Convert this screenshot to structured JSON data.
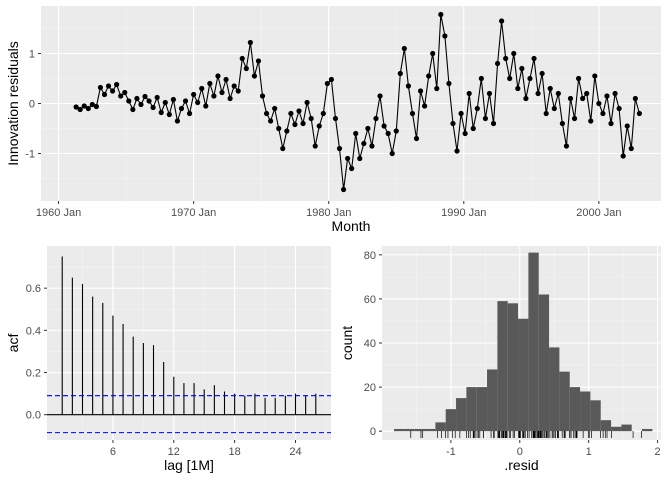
{
  "chart_data": [
    {
      "type": "line",
      "xlabel": "Month",
      "ylabel": "Innovation residuals",
      "x_ticks": [
        "1960 Jan",
        "1970 Jan",
        "1980 Jan",
        "1990 Jan",
        "2000 Jan"
      ],
      "y_ticks": [
        "-1",
        "0",
        "1"
      ],
      "xlim": [
        1958.7,
        2004.6
      ],
      "ylim": [
        -1.95,
        1.95
      ],
      "points_marked": true,
      "series": [
        {
          "values": [
            [
              1961.3,
              -0.07
            ],
            [
              1961.6,
              -0.12
            ],
            [
              1961.9,
              -0.05
            ],
            [
              1962.2,
              -0.1
            ],
            [
              1962.5,
              -0.02
            ],
            [
              1962.8,
              -0.06
            ],
            [
              1963.1,
              0.32
            ],
            [
              1963.4,
              0.18
            ],
            [
              1963.7,
              0.35
            ],
            [
              1964.0,
              0.25
            ],
            [
              1964.3,
              0.38
            ],
            [
              1964.6,
              0.15
            ],
            [
              1964.9,
              0.22
            ],
            [
              1965.2,
              0.05
            ],
            [
              1965.5,
              -0.12
            ],
            [
              1965.8,
              0.1
            ],
            [
              1966.1,
              -0.02
            ],
            [
              1966.4,
              0.14
            ],
            [
              1966.7,
              0.05
            ],
            [
              1967.0,
              -0.08
            ],
            [
              1967.3,
              0.12
            ],
            [
              1967.6,
              -0.18
            ],
            [
              1967.9,
              0.02
            ],
            [
              1968.2,
              -0.22
            ],
            [
              1968.5,
              0.08
            ],
            [
              1968.8,
              -0.35
            ],
            [
              1969.1,
              -0.1
            ],
            [
              1969.4,
              0.05
            ],
            [
              1969.7,
              -0.2
            ],
            [
              1970.0,
              0.18
            ],
            [
              1970.3,
              0.02
            ],
            [
              1970.6,
              0.3
            ],
            [
              1970.9,
              -0.05
            ],
            [
              1971.2,
              0.4
            ],
            [
              1971.5,
              0.15
            ],
            [
              1971.8,
              0.55
            ],
            [
              1972.1,
              0.22
            ],
            [
              1972.4,
              0.48
            ],
            [
              1972.7,
              0.1
            ],
            [
              1973.0,
              0.35
            ],
            [
              1973.3,
              0.25
            ],
            [
              1973.6,
              0.9
            ],
            [
              1973.9,
              0.7
            ],
            [
              1974.2,
              1.22
            ],
            [
              1974.5,
              0.55
            ],
            [
              1974.8,
              0.85
            ],
            [
              1975.1,
              0.15
            ],
            [
              1975.4,
              -0.2
            ],
            [
              1975.7,
              -0.35
            ],
            [
              1976.0,
              -0.1
            ],
            [
              1976.3,
              -0.5
            ],
            [
              1976.6,
              -0.9
            ],
            [
              1976.9,
              -0.55
            ],
            [
              1977.2,
              -0.2
            ],
            [
              1977.5,
              -0.42
            ],
            [
              1977.8,
              -0.15
            ],
            [
              1978.1,
              -0.4
            ],
            [
              1978.4,
              0.02
            ],
            [
              1978.7,
              -0.3
            ],
            [
              1979.0,
              -0.85
            ],
            [
              1979.3,
              -0.45
            ],
            [
              1979.6,
              -0.2
            ],
            [
              1979.9,
              0.4
            ],
            [
              1980.2,
              0.48
            ],
            [
              1980.5,
              -0.3
            ],
            [
              1980.8,
              -0.9
            ],
            [
              1981.1,
              -1.72
            ],
            [
              1981.4,
              -1.1
            ],
            [
              1981.7,
              -1.3
            ],
            [
              1982.0,
              -0.6
            ],
            [
              1982.3,
              -1.1
            ],
            [
              1982.6,
              -0.8
            ],
            [
              1982.9,
              -0.5
            ],
            [
              1983.2,
              -0.85
            ],
            [
              1983.5,
              -0.3
            ],
            [
              1983.8,
              0.15
            ],
            [
              1984.1,
              -0.45
            ],
            [
              1984.4,
              -0.6
            ],
            [
              1984.7,
              -1.0
            ],
            [
              1985.0,
              -0.55
            ],
            [
              1985.3,
              0.6
            ],
            [
              1985.6,
              1.1
            ],
            [
              1985.9,
              0.35
            ],
            [
              1986.2,
              -0.2
            ],
            [
              1986.5,
              -0.7
            ],
            [
              1986.8,
              0.25
            ],
            [
              1987.1,
              -0.05
            ],
            [
              1987.4,
              0.55
            ],
            [
              1987.7,
              1.0
            ],
            [
              1988.0,
              0.3
            ],
            [
              1988.3,
              1.78
            ],
            [
              1988.6,
              1.35
            ],
            [
              1988.9,
              0.4
            ],
            [
              1989.2,
              -0.4
            ],
            [
              1989.5,
              -0.95
            ],
            [
              1989.8,
              -0.2
            ],
            [
              1990.1,
              -0.6
            ],
            [
              1990.4,
              0.2
            ],
            [
              1990.7,
              -0.5
            ],
            [
              1991.0,
              -0.1
            ],
            [
              1991.3,
              0.5
            ],
            [
              1991.6,
              -0.3
            ],
            [
              1991.9,
              0.2
            ],
            [
              1992.2,
              -0.4
            ],
            [
              1992.5,
              0.8
            ],
            [
              1992.8,
              1.65
            ],
            [
              1993.1,
              0.9
            ],
            [
              1993.4,
              0.5
            ],
            [
              1993.7,
              1.0
            ],
            [
              1994.0,
              0.3
            ],
            [
              1994.3,
              0.7
            ],
            [
              1994.6,
              0.1
            ],
            [
              1994.9,
              0.5
            ],
            [
              1995.2,
              0.9
            ],
            [
              1995.5,
              0.2
            ],
            [
              1995.8,
              0.6
            ],
            [
              1996.1,
              -0.2
            ],
            [
              1996.4,
              0.3
            ],
            [
              1996.7,
              -0.1
            ],
            [
              1997.0,
              0.2
            ],
            [
              1997.3,
              -0.4
            ],
            [
              1997.6,
              -0.85
            ],
            [
              1997.9,
              0.1
            ],
            [
              1998.2,
              -0.3
            ],
            [
              1998.5,
              0.5
            ],
            [
              1998.8,
              0.1
            ],
            [
              1999.1,
              0.2
            ],
            [
              1999.4,
              -0.35
            ],
            [
              1999.7,
              0.55
            ],
            [
              2000.0,
              0.0
            ],
            [
              2000.3,
              -0.2
            ],
            [
              2000.6,
              0.15
            ],
            [
              2000.9,
              -0.4
            ],
            [
              2001.2,
              0.2
            ],
            [
              2001.5,
              -0.1
            ],
            [
              2001.8,
              -1.05
            ],
            [
              2002.1,
              -0.45
            ],
            [
              2002.4,
              -0.9
            ],
            [
              2002.7,
              0.1
            ],
            [
              2003.0,
              -0.2
            ]
          ]
        }
      ]
    },
    {
      "type": "bar",
      "xlabel": "lag [1M]",
      "ylabel": "acf",
      "x_ticks": [
        "6",
        "12",
        "18",
        "24"
      ],
      "y_ticks": [
        "0.0",
        "0.2",
        "0.4",
        "0.6"
      ],
      "lags": [
        1,
        2,
        3,
        4,
        5,
        6,
        7,
        8,
        9,
        10,
        11,
        12,
        13,
        14,
        15,
        16,
        17,
        18,
        19,
        20,
        21,
        22,
        23,
        24,
        25,
        26
      ],
      "values": [
        0.75,
        0.65,
        0.62,
        0.56,
        0.53,
        0.47,
        0.43,
        0.37,
        0.34,
        0.33,
        0.25,
        0.18,
        0.15,
        0.15,
        0.12,
        0.14,
        0.11,
        0.1,
        0.09,
        0.1,
        0.08,
        0.08,
        0.09,
        0.1,
        0.09,
        0.1
      ],
      "confidence_bounds": [
        0.09,
        -0.085
      ],
      "xlim": [
        -0.5,
        27.5
      ],
      "ylim": [
        -0.12,
        0.8
      ]
    },
    {
      "type": "bar",
      "xlabel": ".resid",
      "ylabel": "count",
      "x_ticks": [
        "-1",
        "0",
        "1",
        "2"
      ],
      "y_ticks": [
        "0",
        "20",
        "40",
        "60",
        "80"
      ],
      "bins": [
        -1.75,
        -1.6,
        -1.45,
        -1.3,
        -1.15,
        -1.0,
        -0.85,
        -0.7,
        -0.55,
        -0.4,
        -0.25,
        -0.1,
        0.05,
        0.2,
        0.35,
        0.5,
        0.65,
        0.8,
        0.95,
        1.1,
        1.25,
        1.4,
        1.55,
        1.7,
        1.85
      ],
      "values": [
        1,
        1,
        1,
        1,
        4,
        10,
        15,
        20,
        20,
        28,
        59,
        58,
        51,
        81,
        62,
        38,
        27,
        20,
        18,
        14,
        5,
        2,
        3,
        0,
        1
      ],
      "rug": true,
      "xlim": [
        -2.0,
        2.05
      ],
      "ylim": [
        -4,
        84
      ]
    }
  ]
}
